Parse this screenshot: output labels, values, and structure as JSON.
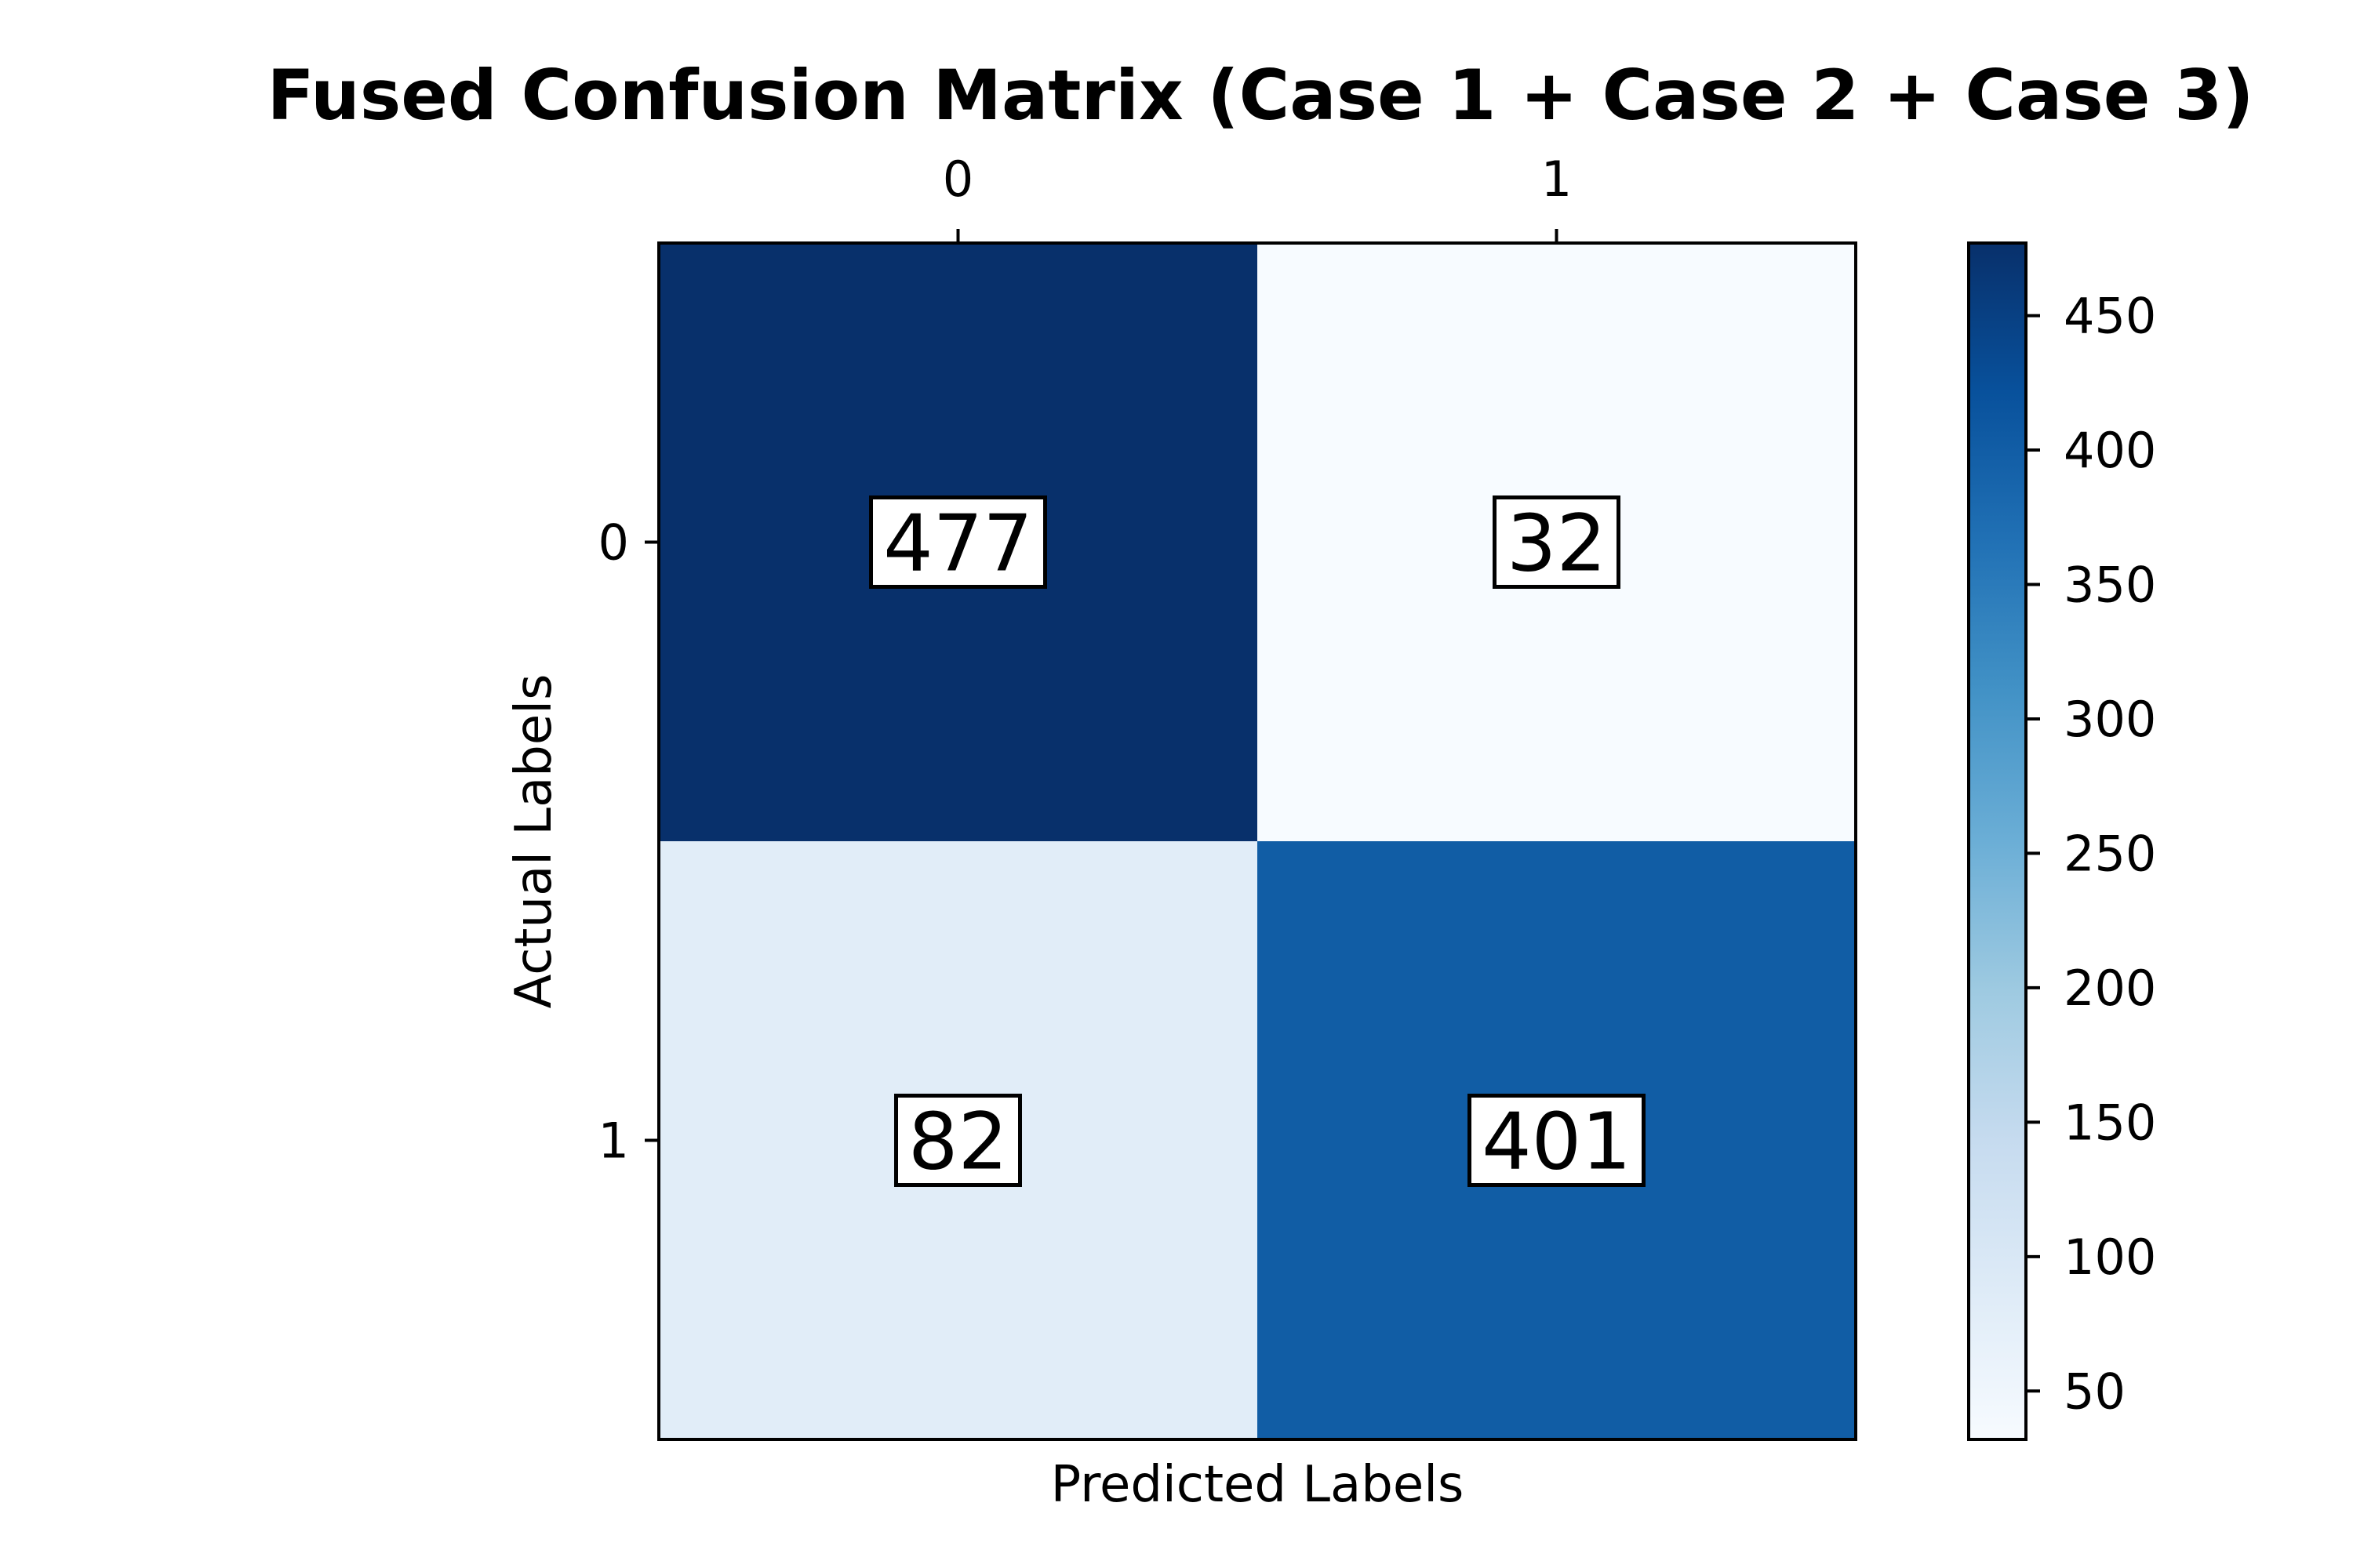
{
  "chart_data": {
    "type": "heatmap",
    "title": "Fused Confusion Matrix (Case 1 + Case 2 + Case 3)",
    "xlabel": "Predicted Labels",
    "ylabel": "Actual Labels",
    "x_categories": [
      "0",
      "1"
    ],
    "y_categories": [
      "0",
      "1"
    ],
    "values": [
      [
        477,
        32
      ],
      [
        82,
        401
      ]
    ],
    "colormap": "Blues",
    "colorbar": {
      "range": [
        32,
        477
      ],
      "ticks": [
        50,
        100,
        150,
        200,
        250,
        300,
        350,
        400,
        450
      ]
    },
    "x_axis_position": "top",
    "cell_label_boxed": true,
    "grid": false
  },
  "colors": {
    "cmap_low": "#f7fbff",
    "cmap_high": "#08306b",
    "frame": "#000000"
  }
}
